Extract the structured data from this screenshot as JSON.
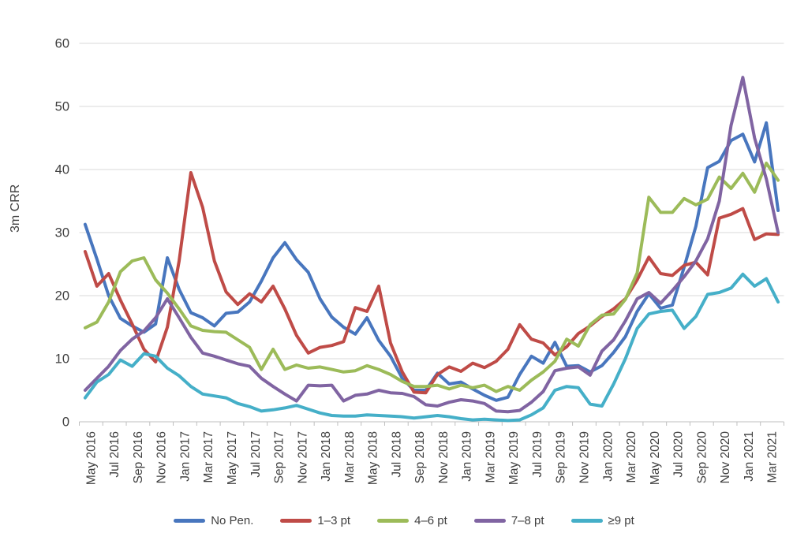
{
  "colors": {
    "grid": "#D9D9D9",
    "axis": "#BFBFBF",
    "tick": "#BFBFBF",
    "text": "#404040"
  },
  "chart_data": {
    "type": "line",
    "title": "",
    "xlabel": "",
    "ylabel": "3m CRR",
    "ylim": [
      0,
      60
    ],
    "y_ticks": [
      0,
      10,
      20,
      30,
      40,
      50,
      60
    ],
    "grid": true,
    "legend_position": "bottom",
    "x": [
      "May 2016",
      "Jun 2016",
      "Jul 2016",
      "Aug 2016",
      "Sep 2016",
      "Oct 2016",
      "Nov 2016",
      "Dec 2016",
      "Jan 2017",
      "Feb 2017",
      "Mar 2017",
      "Apr 2017",
      "May 2017",
      "Jun 2017",
      "Jul 2017",
      "Aug 2017",
      "Sep 2017",
      "Oct 2017",
      "Nov 2017",
      "Dec 2017",
      "Jan 2018",
      "Feb 2018",
      "Mar 2018",
      "Apr 2018",
      "May 2018",
      "Jun 2018",
      "Jul 2018",
      "Aug 2018",
      "Sep 2018",
      "Oct 2018",
      "Nov 2018",
      "Dec 2018",
      "Jan 2019",
      "Feb 2019",
      "Mar 2019",
      "Apr 2019",
      "May 2019",
      "Jun 2019",
      "Jul 2019",
      "Aug 2019",
      "Sep 2019",
      "Oct 2019",
      "Nov 2019",
      "Dec 2019",
      "Jan 2020",
      "Feb 2020",
      "Mar 2020",
      "Apr 2020",
      "May 2020",
      "Jun 2020",
      "Jul 2020",
      "Aug 2020",
      "Sep 2020",
      "Oct 2020",
      "Nov 2020",
      "Dec 2020",
      "Jan 2021",
      "Feb 2021",
      "Mar 2021",
      "Apr 2021"
    ],
    "x_tick_labels": [
      "May 2016",
      "Jul 2016",
      "Sep 2016",
      "Nov 2016",
      "Jan 2017",
      "Mar 2017",
      "May 2017",
      "Jul 2017",
      "Sep 2017",
      "Nov 2017",
      "Jan 2018",
      "Mar 2018",
      "May 2018",
      "Jul 2018",
      "Sep 2018",
      "Nov 2018",
      "Jan 2019",
      "Mar 2019",
      "May 2019",
      "Jul 2019",
      "Sep 2019",
      "Nov 2019",
      "Jan 2020",
      "Mar 2020",
      "May 2020",
      "Jul 2020",
      "Sep 2020",
      "Nov 2020",
      "Jan 2021",
      "Mar 2021"
    ],
    "series": [
      {
        "name": "No Pen.",
        "color": "#4876BE",
        "values": [
          31.3,
          25.8,
          20.0,
          16.4,
          15.2,
          14.2,
          15.5,
          26.0,
          21.0,
          17.3,
          16.5,
          15.2,
          17.2,
          17.4,
          19.0,
          22.3,
          26.0,
          28.4,
          25.7,
          23.7,
          19.5,
          16.6,
          15.0,
          13.9,
          16.5,
          12.9,
          10.4,
          6.9,
          5.0,
          5.0,
          7.7,
          6.0,
          6.3,
          5.2,
          4.2,
          3.4,
          3.9,
          7.5,
          10.4,
          9.3,
          12.6,
          8.8,
          8.9,
          7.9,
          8.9,
          11.0,
          13.5,
          17.5,
          20.3,
          18.0,
          18.5,
          24.5,
          31.0,
          40.3,
          41.3,
          44.6,
          45.6,
          41.2,
          47.4,
          33.5
        ]
      },
      {
        "name": "1–3 pt",
        "color": "#BF4B47",
        "values": [
          27.0,
          21.5,
          23.5,
          19.3,
          15.5,
          11.5,
          9.5,
          15.0,
          25.5,
          39.5,
          34.0,
          25.5,
          20.6,
          18.6,
          20.3,
          19.0,
          21.5,
          17.9,
          13.7,
          10.9,
          11.8,
          12.1,
          12.7,
          18.1,
          17.5,
          21.5,
          12.5,
          7.9,
          4.7,
          4.6,
          7.5,
          8.7,
          8.0,
          9.3,
          8.6,
          9.6,
          11.5,
          15.4,
          13.1,
          12.5,
          10.6,
          11.9,
          14.0,
          15.2,
          16.7,
          17.9,
          19.5,
          22.5,
          26.1,
          23.5,
          23.2,
          24.8,
          25.3,
          23.3,
          32.3,
          32.9,
          33.8,
          28.9,
          29.8,
          29.7
        ]
      },
      {
        "name": "4–6 pt",
        "color": "#9CBB59",
        "values": [
          14.9,
          15.8,
          19.0,
          23.8,
          25.5,
          26.0,
          22.5,
          20.4,
          17.9,
          15.2,
          14.5,
          14.3,
          14.2,
          13.0,
          11.8,
          8.3,
          11.5,
          8.3,
          9.0,
          8.5,
          8.7,
          8.3,
          7.9,
          8.1,
          8.9,
          8.3,
          7.5,
          6.4,
          5.6,
          5.6,
          5.8,
          5.2,
          5.8,
          5.4,
          5.8,
          4.8,
          5.6,
          5.0,
          6.6,
          7.9,
          9.6,
          13.1,
          12.0,
          15.4,
          16.9,
          17.1,
          19.4,
          23.6,
          35.6,
          33.2,
          33.2,
          35.4,
          34.4,
          35.3,
          38.8,
          37.0,
          39.4,
          36.4,
          41.0,
          38.3
        ]
      },
      {
        "name": "7–8 pt",
        "color": "#8064A2",
        "values": [
          5.0,
          6.9,
          8.8,
          11.3,
          13.1,
          14.4,
          16.5,
          19.5,
          16.5,
          13.4,
          10.9,
          10.4,
          9.8,
          9.2,
          8.8,
          6.9,
          5.6,
          4.4,
          3.3,
          5.8,
          5.7,
          5.8,
          3.3,
          4.2,
          4.4,
          5.0,
          4.6,
          4.5,
          4.0,
          2.7,
          2.5,
          3.1,
          3.5,
          3.3,
          2.9,
          1.7,
          1.6,
          1.8,
          3.1,
          4.8,
          8.1,
          8.5,
          8.7,
          7.4,
          11.2,
          13.0,
          16.0,
          19.5,
          20.5,
          18.8,
          20.8,
          23.0,
          25.5,
          29.0,
          35.0,
          47.0,
          54.6,
          45.0,
          38.5,
          30.0
        ]
      },
      {
        "name": "≥9 pt",
        "color": "#45AFC8",
        "values": [
          3.8,
          6.3,
          7.5,
          9.8,
          8.8,
          10.8,
          10.4,
          8.5,
          7.3,
          5.6,
          4.4,
          4.1,
          3.8,
          2.9,
          2.4,
          1.7,
          1.9,
          2.2,
          2.6,
          2.0,
          1.4,
          1.0,
          0.9,
          0.9,
          1.1,
          1.0,
          0.9,
          0.8,
          0.6,
          0.8,
          1.0,
          0.8,
          0.5,
          0.3,
          0.4,
          0.3,
          0.2,
          0.3,
          1.1,
          2.2,
          5.0,
          5.6,
          5.4,
          2.8,
          2.5,
          6.0,
          10.0,
          14.8,
          17.1,
          17.5,
          17.7,
          14.8,
          16.7,
          20.2,
          20.5,
          21.2,
          23.4,
          21.5,
          22.7,
          19.0
        ]
      }
    ]
  }
}
